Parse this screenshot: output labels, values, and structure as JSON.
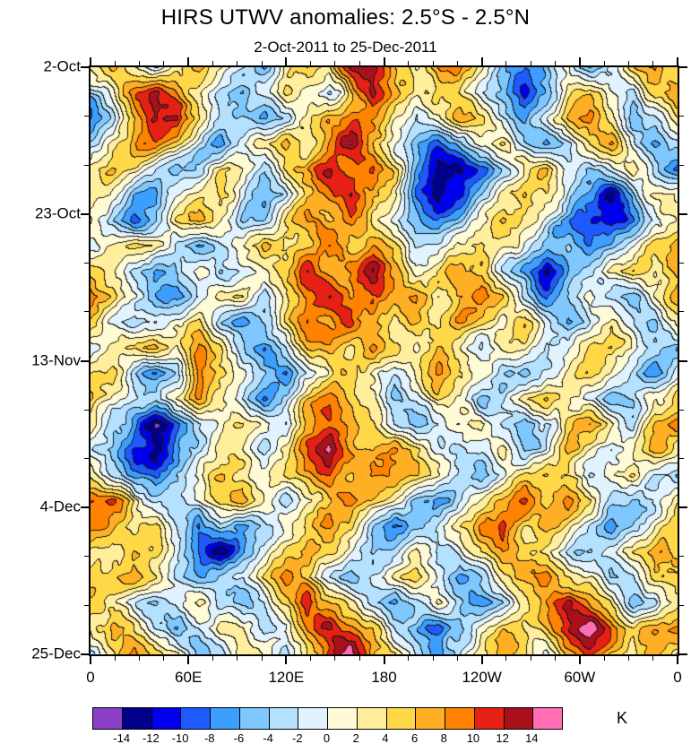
{
  "chart_data": {
    "type": "heatmap",
    "title": "HIRS UTWV anomalies: 2.5°S - 2.5°N",
    "subtitle": "2-Oct-2011 to 25-Dec-2011",
    "x_axis": {
      "tick_labels": [
        "0",
        "60E",
        "120E",
        "180",
        "120W",
        "60W",
        "0"
      ],
      "range_degrees": [
        0,
        360
      ],
      "minor_ticks_per_interval": 3
    },
    "y_axis": {
      "tick_labels": [
        "2-Oct",
        "23-Oct",
        "13-Nov",
        "4-Dec",
        "25-Dec"
      ],
      "range": [
        "2-Oct-2011",
        "25-Dec-2011"
      ],
      "minor_ticks_per_interval": 2
    },
    "colorbar": {
      "unit": "K",
      "levels": [
        -14,
        -12,
        -10,
        -8,
        -6,
        -4,
        -2,
        0,
        2,
        4,
        6,
        8,
        10,
        12,
        14
      ],
      "tick_labels": [
        "-14",
        "-12",
        "-10",
        "-8",
        "-6",
        "-4",
        "-2",
        "0",
        "2",
        "4",
        "6",
        "8",
        "10",
        "12",
        "14"
      ],
      "colors": [
        "#8B3FC6",
        "#00008B",
        "#0000EE",
        "#1E5AFF",
        "#3C9EFF",
        "#7EC8FF",
        "#B4E1FF",
        "#E1F3FF",
        "#FFFBD7",
        "#FFEE9B",
        "#FFD848",
        "#FFAF24",
        "#FF8200",
        "#E62014",
        "#A8101C",
        "#FF6EB4"
      ]
    },
    "grid_units": "K anomaly, longitude (cols, 0E eastward to 0W) vs time (rows, 2-Oct top to 25-Dec bottom)",
    "grid": [
      [
        3,
        7,
        2,
        -2,
        4,
        8,
        3,
        -1,
        -5,
        2,
        6,
        3,
        10,
        12,
        6,
        2,
        8,
        10,
        4,
        -3,
        -8,
        -4,
        2,
        -6,
        -3,
        4,
        8,
        3
      ],
      [
        -4,
        2,
        9,
        13,
        8,
        2,
        -4,
        -7,
        -2,
        4,
        2,
        -3,
        6,
        13,
        9,
        3,
        6,
        4,
        -2,
        -6,
        -10,
        -5,
        3,
        7,
        2,
        -2,
        6,
        9
      ],
      [
        -8,
        -3,
        5,
        14,
        15,
        4,
        -2,
        -5,
        -8,
        -3,
        3,
        8,
        12,
        9,
        4,
        -2,
        2,
        6,
        3,
        -4,
        -7,
        -2,
        6,
        10,
        4,
        -5,
        -2,
        4
      ],
      [
        -3,
        2,
        7,
        10,
        5,
        -3,
        -6,
        -2,
        3,
        6,
        2,
        9,
        14,
        6,
        -2,
        -5,
        -9,
        -4,
        2,
        5,
        -2,
        -6,
        -3,
        4,
        8,
        -2,
        -8,
        -3
      ],
      [
        2,
        6,
        3,
        -2,
        -6,
        -3,
        4,
        2,
        -4,
        3,
        8,
        12,
        8,
        10,
        4,
        -6,
        -12,
        -13,
        -8,
        -3,
        3,
        6,
        -2,
        -5,
        -2,
        3,
        -4,
        -9
      ],
      [
        5,
        2,
        -5,
        -8,
        -3,
        2,
        6,
        -2,
        -7,
        -3,
        4,
        9,
        13,
        7,
        2,
        -8,
        -13,
        -10,
        -4,
        2,
        6,
        3,
        -3,
        -8,
        -12,
        -4,
        2,
        4
      ],
      [
        3,
        -3,
        -8,
        -4,
        3,
        7,
        2,
        -4,
        -2,
        5,
        9,
        6,
        10,
        4,
        -2,
        -5,
        -8,
        -4,
        3,
        7,
        4,
        -2,
        -6,
        -10,
        -13,
        -8,
        -2,
        3
      ],
      [
        -2,
        3,
        6,
        2,
        -3,
        -6,
        -2,
        4,
        8,
        3,
        6,
        11,
        5,
        8,
        3,
        -3,
        -2,
        4,
        8,
        3,
        -2,
        -5,
        -3,
        -8,
        -6,
        -2,
        4,
        6
      ],
      [
        8,
        4,
        -2,
        -6,
        -3,
        3,
        -5,
        -2,
        3,
        7,
        10,
        6,
        9,
        12,
        6,
        2,
        5,
        8,
        4,
        -3,
        -7,
        -12,
        -5,
        -2,
        3,
        6,
        2,
        7
      ],
      [
        10,
        5,
        2,
        -4,
        -8,
        -3,
        2,
        5,
        -2,
        4,
        8,
        12,
        7,
        10,
        5,
        8,
        3,
        6,
        9,
        4,
        -2,
        -8,
        -4,
        2,
        -3,
        -6,
        2,
        9
      ],
      [
        4,
        -2,
        -6,
        -3,
        3,
        6,
        -3,
        -6,
        -2,
        3,
        9,
        7,
        11,
        6,
        3,
        7,
        4,
        8,
        5,
        2,
        6,
        -3,
        -7,
        -3,
        3,
        -2,
        -5,
        2
      ],
      [
        -3,
        2,
        4,
        8,
        3,
        9,
        5,
        -2,
        -6,
        -3,
        4,
        7,
        3,
        8,
        4,
        2,
        7,
        3,
        -2,
        4,
        2,
        -4,
        -2,
        4,
        7,
        2,
        -3,
        -6
      ],
      [
        2,
        5,
        -3,
        -7,
        -2,
        11,
        7,
        2,
        -3,
        -8,
        -4,
        3,
        6,
        2,
        -3,
        3,
        8,
        5,
        2,
        -3,
        -6,
        -2,
        3,
        5,
        2,
        -4,
        -8,
        -2
      ],
      [
        6,
        2,
        -2,
        -4,
        3,
        8,
        4,
        -2,
        -7,
        -3,
        5,
        9,
        6,
        3,
        -4,
        -2,
        5,
        2,
        -5,
        -2,
        3,
        6,
        2,
        -2,
        -5,
        -3,
        2,
        5
      ],
      [
        3,
        -3,
        -8,
        -13,
        -9,
        -3,
        2,
        5,
        2,
        -3,
        6,
        10,
        7,
        4,
        -2,
        -6,
        -3,
        2,
        4,
        -4,
        -8,
        -3,
        4,
        8,
        3,
        -2,
        6,
        9
      ],
      [
        -2,
        -6,
        -12,
        -13,
        -8,
        -2,
        4,
        2,
        -4,
        3,
        9,
        15,
        9,
        5,
        8,
        4,
        -2,
        -5,
        -2,
        3,
        -4,
        -2,
        6,
        3,
        -3,
        2,
        8,
        4
      ],
      [
        4,
        -2,
        -7,
        -10,
        -4,
        2,
        6,
        3,
        -2,
        5,
        8,
        11,
        6,
        9,
        5,
        7,
        3,
        -3,
        -6,
        -2,
        4,
        7,
        3,
        -2,
        2,
        5,
        -2,
        -4
      ],
      [
        9,
        13,
        5,
        -2,
        -5,
        -2,
        3,
        7,
        2,
        -4,
        3,
        7,
        9,
        5,
        2,
        -4,
        -7,
        -3,
        2,
        5,
        8,
        4,
        9,
        5,
        -2,
        -6,
        -3,
        3
      ],
      [
        12,
        7,
        2,
        4,
        -3,
        -7,
        -3,
        -8,
        -4,
        2,
        6,
        8,
        4,
        -3,
        -8,
        -5,
        -2,
        3,
        6,
        9,
        4,
        7,
        3,
        -3,
        -8,
        -4,
        2,
        6
      ],
      [
        5,
        2,
        6,
        3,
        -2,
        -9,
        -13,
        -6,
        -2,
        3,
        7,
        4,
        -2,
        -6,
        -3,
        2,
        -4,
        -2,
        4,
        8,
        5,
        2,
        -3,
        -6,
        -2,
        4,
        8,
        3
      ],
      [
        2,
        6,
        9,
        4,
        -4,
        -8,
        -5,
        -2,
        4,
        8,
        3,
        -3,
        -7,
        -2,
        3,
        6,
        2,
        -5,
        -2,
        3,
        7,
        10,
        6,
        2,
        -4,
        -2,
        5,
        7
      ],
      [
        7,
        3,
        -2,
        -5,
        -2,
        3,
        -3,
        -7,
        -2,
        5,
        10,
        6,
        3,
        -4,
        -8,
        -3,
        3,
        -2,
        -6,
        -3,
        4,
        9,
        13,
        7,
        2,
        -5,
        -3,
        4
      ],
      [
        4,
        8,
        3,
        -3,
        -6,
        -2,
        4,
        2,
        -5,
        -2,
        8,
        13,
        9,
        4,
        -2,
        -7,
        -10,
        -4,
        2,
        6,
        2,
        5,
        10,
        14,
        8,
        3,
        6,
        9
      ],
      [
        -2,
        4,
        9,
        5,
        2,
        -4,
        -2,
        6,
        3,
        -3,
        5,
        11,
        15,
        7,
        3,
        -3,
        -6,
        -2,
        5,
        9,
        4,
        -2,
        6,
        10,
        5,
        2,
        8,
        4
      ]
    ]
  }
}
